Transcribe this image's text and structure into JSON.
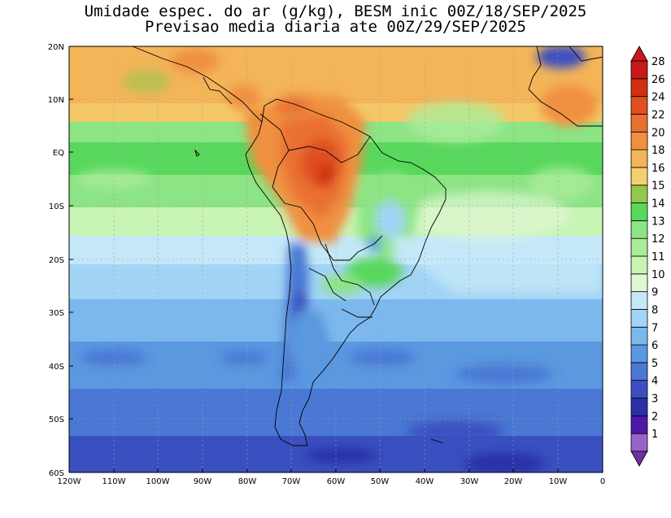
{
  "title": {
    "line1": "Umidade espec. do ar (g/kg), BESM inic 00Z/18/SEP/2025",
    "line2": "Previsao media diaria ate 00Z/29/SEP/2025"
  },
  "axes": {
    "lat_labels": [
      "20N",
      "10N",
      "EQ",
      "10S",
      "20S",
      "30S",
      "40S",
      "50S",
      "60S"
    ],
    "lon_labels": [
      "120W",
      "110W",
      "100W",
      "90W",
      "80W",
      "70W",
      "60W",
      "50W",
      "40W",
      "30W",
      "20W",
      "10W",
      "0"
    ],
    "grid": true
  },
  "colorbar": {
    "levels": [
      "1",
      "2",
      "3",
      "4",
      "5",
      "6",
      "7",
      "8",
      "9",
      "10",
      "11",
      "12",
      "13",
      "14",
      "15",
      "16",
      "18",
      "20",
      "22",
      "24",
      "26",
      "28"
    ],
    "colors": [
      "#9a62c8",
      "#4b18a8",
      "#2b30a8",
      "#3a50c0",
      "#4a78d4",
      "#5a98e0",
      "#7cb8ee",
      "#a2d4f6",
      "#c4e8f8",
      "#e0f6d4",
      "#c8f4b4",
      "#aaec9a",
      "#8ce484",
      "#58d85c",
      "#94c84c",
      "#f4d070",
      "#f4b458",
      "#f09040",
      "#ea7030",
      "#e05020",
      "#d03010",
      "#c81818"
    ],
    "under_color": "#7030a0",
    "over_color": "#c81818"
  },
  "map": {
    "region": "South America",
    "variable": "specific humidity (g/kg)"
  }
}
